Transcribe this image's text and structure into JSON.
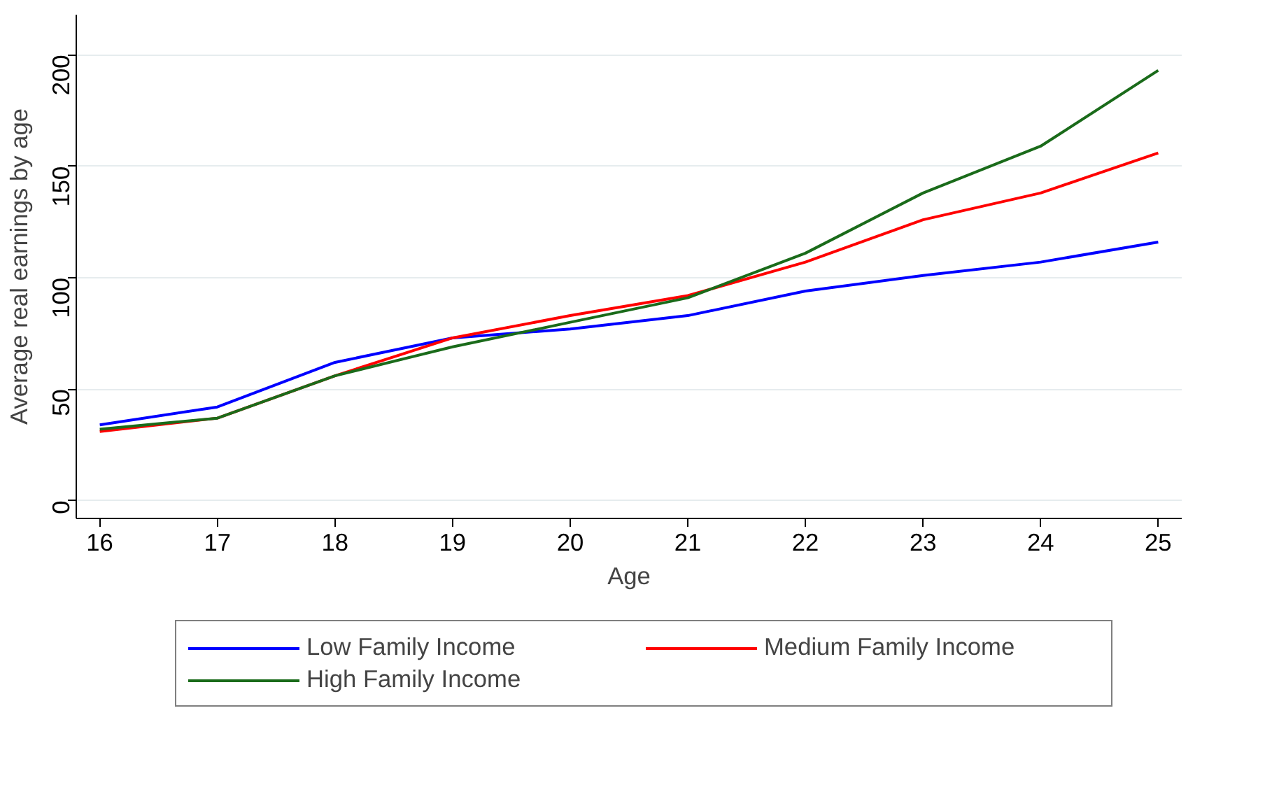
{
  "chart_data": {
    "type": "line",
    "xlabel": "Age",
    "ylabel": "Average real earnings by age",
    "x": [
      16,
      17,
      18,
      19,
      20,
      21,
      22,
      23,
      24,
      25
    ],
    "series": [
      {
        "name": "Low Family Income",
        "color": "#0000ff",
        "values": [
          34,
          42,
          62,
          73,
          77,
          83,
          94,
          101,
          107,
          116
        ]
      },
      {
        "name": "Medium Family Income",
        "color": "#ff0000",
        "values": [
          31,
          37,
          56,
          73,
          83,
          92,
          107,
          126,
          138,
          156
        ]
      },
      {
        "name": "High Family Income",
        "color": "#1a6b1a",
        "values": [
          32,
          37,
          56,
          69,
          80,
          91,
          111,
          138,
          159,
          193
        ]
      }
    ],
    "xlim": [
      15.8,
      25.2
    ],
    "ylim": [
      -8,
      218
    ],
    "xticks": [
      16,
      17,
      18,
      19,
      20,
      21,
      22,
      23,
      24,
      25
    ],
    "yticks": [
      0,
      50,
      100,
      150,
      200
    ],
    "grid": "y",
    "legend": "bottom",
    "marker": "none",
    "line_style": "solid"
  }
}
